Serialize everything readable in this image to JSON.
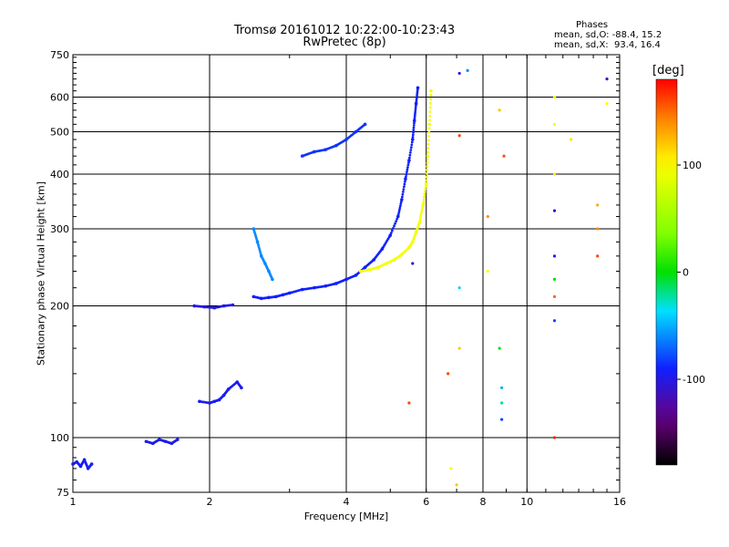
{
  "window": {
    "title": "Tromsø 20161012 10:22:00-10:23:43",
    "subtitle": "RwPretec (8p)"
  },
  "phases_box": {
    "heading": "Phases",
    "line1": "mean, sd,O: -88.4, 15.2",
    "line2": "mean, sd,X:  93.4, 16.4"
  },
  "chart_data": {
    "type": "scatter",
    "title": "Tromsø 20161012 10:22:00-10:23:43",
    "subtitle": "RwPretec (8p)",
    "xlabel": "Frequency [MHz]",
    "ylabel": "Stationary phase Virtual Height [km]",
    "x_scale": "log",
    "y_scale": "log",
    "xlim": [
      1,
      16
    ],
    "ylim": [
      75,
      750
    ],
    "xticks": [
      1,
      2,
      4,
      6,
      8,
      10,
      16
    ],
    "xtick_labels": [
      "1",
      "2",
      "4",
      "6",
      "8",
      "10",
      "16"
    ],
    "yticks": [
      75,
      100,
      200,
      300,
      400,
      500,
      600,
      750
    ],
    "ytick_labels": [
      "75",
      "100",
      "200",
      "300",
      "400",
      "500",
      "600",
      "750"
    ],
    "grid": true,
    "colorbar": {
      "label": "[deg]",
      "range": [
        -180,
        180
      ],
      "ticks": [
        100,
        0,
        -100
      ],
      "tick_labels": [
        "100",
        "0",
        "-100"
      ]
    },
    "series": [
      {
        "name": "O",
        "color": "#1030e0",
        "mean_phase": -88.4,
        "sd_phase": 15.2,
        "segments": [
          {
            "x": [
              1.0,
              1.02,
              1.04,
              1.06,
              1.08,
              1.1
            ],
            "y": [
              87,
              88,
              86,
              89,
              85,
              87
            ],
            "phase": -95
          },
          {
            "x": [
              1.45,
              1.5,
              1.55,
              1.6,
              1.65,
              1.7
            ],
            "y": [
              98,
              97,
              99,
              98,
              97,
              99
            ],
            "phase": -95
          },
          {
            "x": [
              1.9,
              2.0,
              2.05,
              2.1,
              2.15,
              2.2,
              2.3,
              2.35
            ],
            "y": [
              121,
              120,
              121,
              122,
              125,
              129,
              134,
              130
            ],
            "phase": -95
          },
          {
            "x": [
              1.85,
              1.95,
              2.05,
              2.15,
              2.25
            ],
            "y": [
              200,
              199,
              198,
              200,
              201
            ],
            "phase": -100
          },
          {
            "x": [
              2.5,
              2.6,
              2.7,
              2.8,
              2.9,
              3.0,
              3.2,
              3.4,
              3.6,
              3.8,
              4.0,
              4.2,
              4.4,
              4.6,
              4.8,
              5.0,
              5.2,
              5.3,
              5.4,
              5.5,
              5.6,
              5.65,
              5.7,
              5.75
            ],
            "y": [
              210,
              208,
              209,
              210,
              212,
              214,
              218,
              220,
              222,
              225,
              230,
              235,
              245,
              255,
              270,
              290,
              320,
              350,
              390,
              430,
              480,
              530,
              580,
              630
            ],
            "phase": -90
          },
          {
            "x": [
              3.2,
              3.4,
              3.6,
              3.8,
              4.0,
              4.2,
              4.4
            ],
            "y": [
              440,
              450,
              455,
              465,
              480,
              500,
              520
            ],
            "phase": -85
          },
          {
            "x": [
              2.5,
              2.55,
              2.6,
              2.65,
              2.7,
              2.75
            ],
            "y": [
              300,
              280,
              260,
              250,
              240,
              230
            ],
            "phase": -60
          }
        ]
      },
      {
        "name": "X",
        "color": "#ffd000",
        "mean_phase": 93.4,
        "sd_phase": 16.4,
        "segments": [
          {
            "x": [
              4.3,
              4.5,
              4.7,
              4.9,
              5.1,
              5.3,
              5.5,
              5.6,
              5.7,
              5.8,
              5.9,
              6.0,
              6.05,
              6.1,
              6.15
            ],
            "y": [
              240,
              242,
              245,
              250,
              255,
              262,
              272,
              280,
              295,
              310,
              340,
              380,
              440,
              520,
              620
            ],
            "phase": 95
          }
        ]
      }
    ],
    "scattered_points": [
      {
        "x": 7.1,
        "y": 680,
        "phase": -100
      },
      {
        "x": 7.1,
        "y": 490,
        "phase": 160
      },
      {
        "x": 7.1,
        "y": 220,
        "phase": -40
      },
      {
        "x": 7.1,
        "y": 160,
        "phase": 120
      },
      {
        "x": 6.7,
        "y": 140,
        "phase": 160
      },
      {
        "x": 6.8,
        "y": 85,
        "phase": 100
      },
      {
        "x": 7.0,
        "y": 78,
        "phase": 120
      },
      {
        "x": 7.4,
        "y": 690,
        "phase": -60
      },
      {
        "x": 8.2,
        "y": 320,
        "phase": 140
      },
      {
        "x": 8.2,
        "y": 240,
        "phase": 100
      },
      {
        "x": 8.7,
        "y": 560,
        "phase": 120
      },
      {
        "x": 8.7,
        "y": 160,
        "phase": 0
      },
      {
        "x": 8.8,
        "y": 130,
        "phase": -50
      },
      {
        "x": 8.8,
        "y": 120,
        "phase": -20
      },
      {
        "x": 8.8,
        "y": 110,
        "phase": -80
      },
      {
        "x": 8.9,
        "y": 440,
        "phase": 160
      },
      {
        "x": 11.5,
        "y": 600,
        "phase": 95
      },
      {
        "x": 11.5,
        "y": 520,
        "phase": 100
      },
      {
        "x": 11.5,
        "y": 400,
        "phase": 110
      },
      {
        "x": 11.5,
        "y": 330,
        "phase": -100
      },
      {
        "x": 11.5,
        "y": 260,
        "phase": -90
      },
      {
        "x": 11.5,
        "y": 230,
        "phase": 0
      },
      {
        "x": 11.5,
        "y": 210,
        "phase": 150
      },
      {
        "x": 11.5,
        "y": 185,
        "phase": -80
      },
      {
        "x": 11.5,
        "y": 100,
        "phase": 170
      },
      {
        "x": 12.5,
        "y": 480,
        "phase": 110
      },
      {
        "x": 14.3,
        "y": 340,
        "phase": 130
      },
      {
        "x": 14.3,
        "y": 300,
        "phase": 140
      },
      {
        "x": 14.3,
        "y": 260,
        "phase": 160
      },
      {
        "x": 15.0,
        "y": 660,
        "phase": -120
      },
      {
        "x": 15.0,
        "y": 580,
        "phase": 100
      },
      {
        "x": 5.5,
        "y": 120,
        "phase": 160
      },
      {
        "x": 5.6,
        "y": 250,
        "phase": -110
      }
    ]
  }
}
